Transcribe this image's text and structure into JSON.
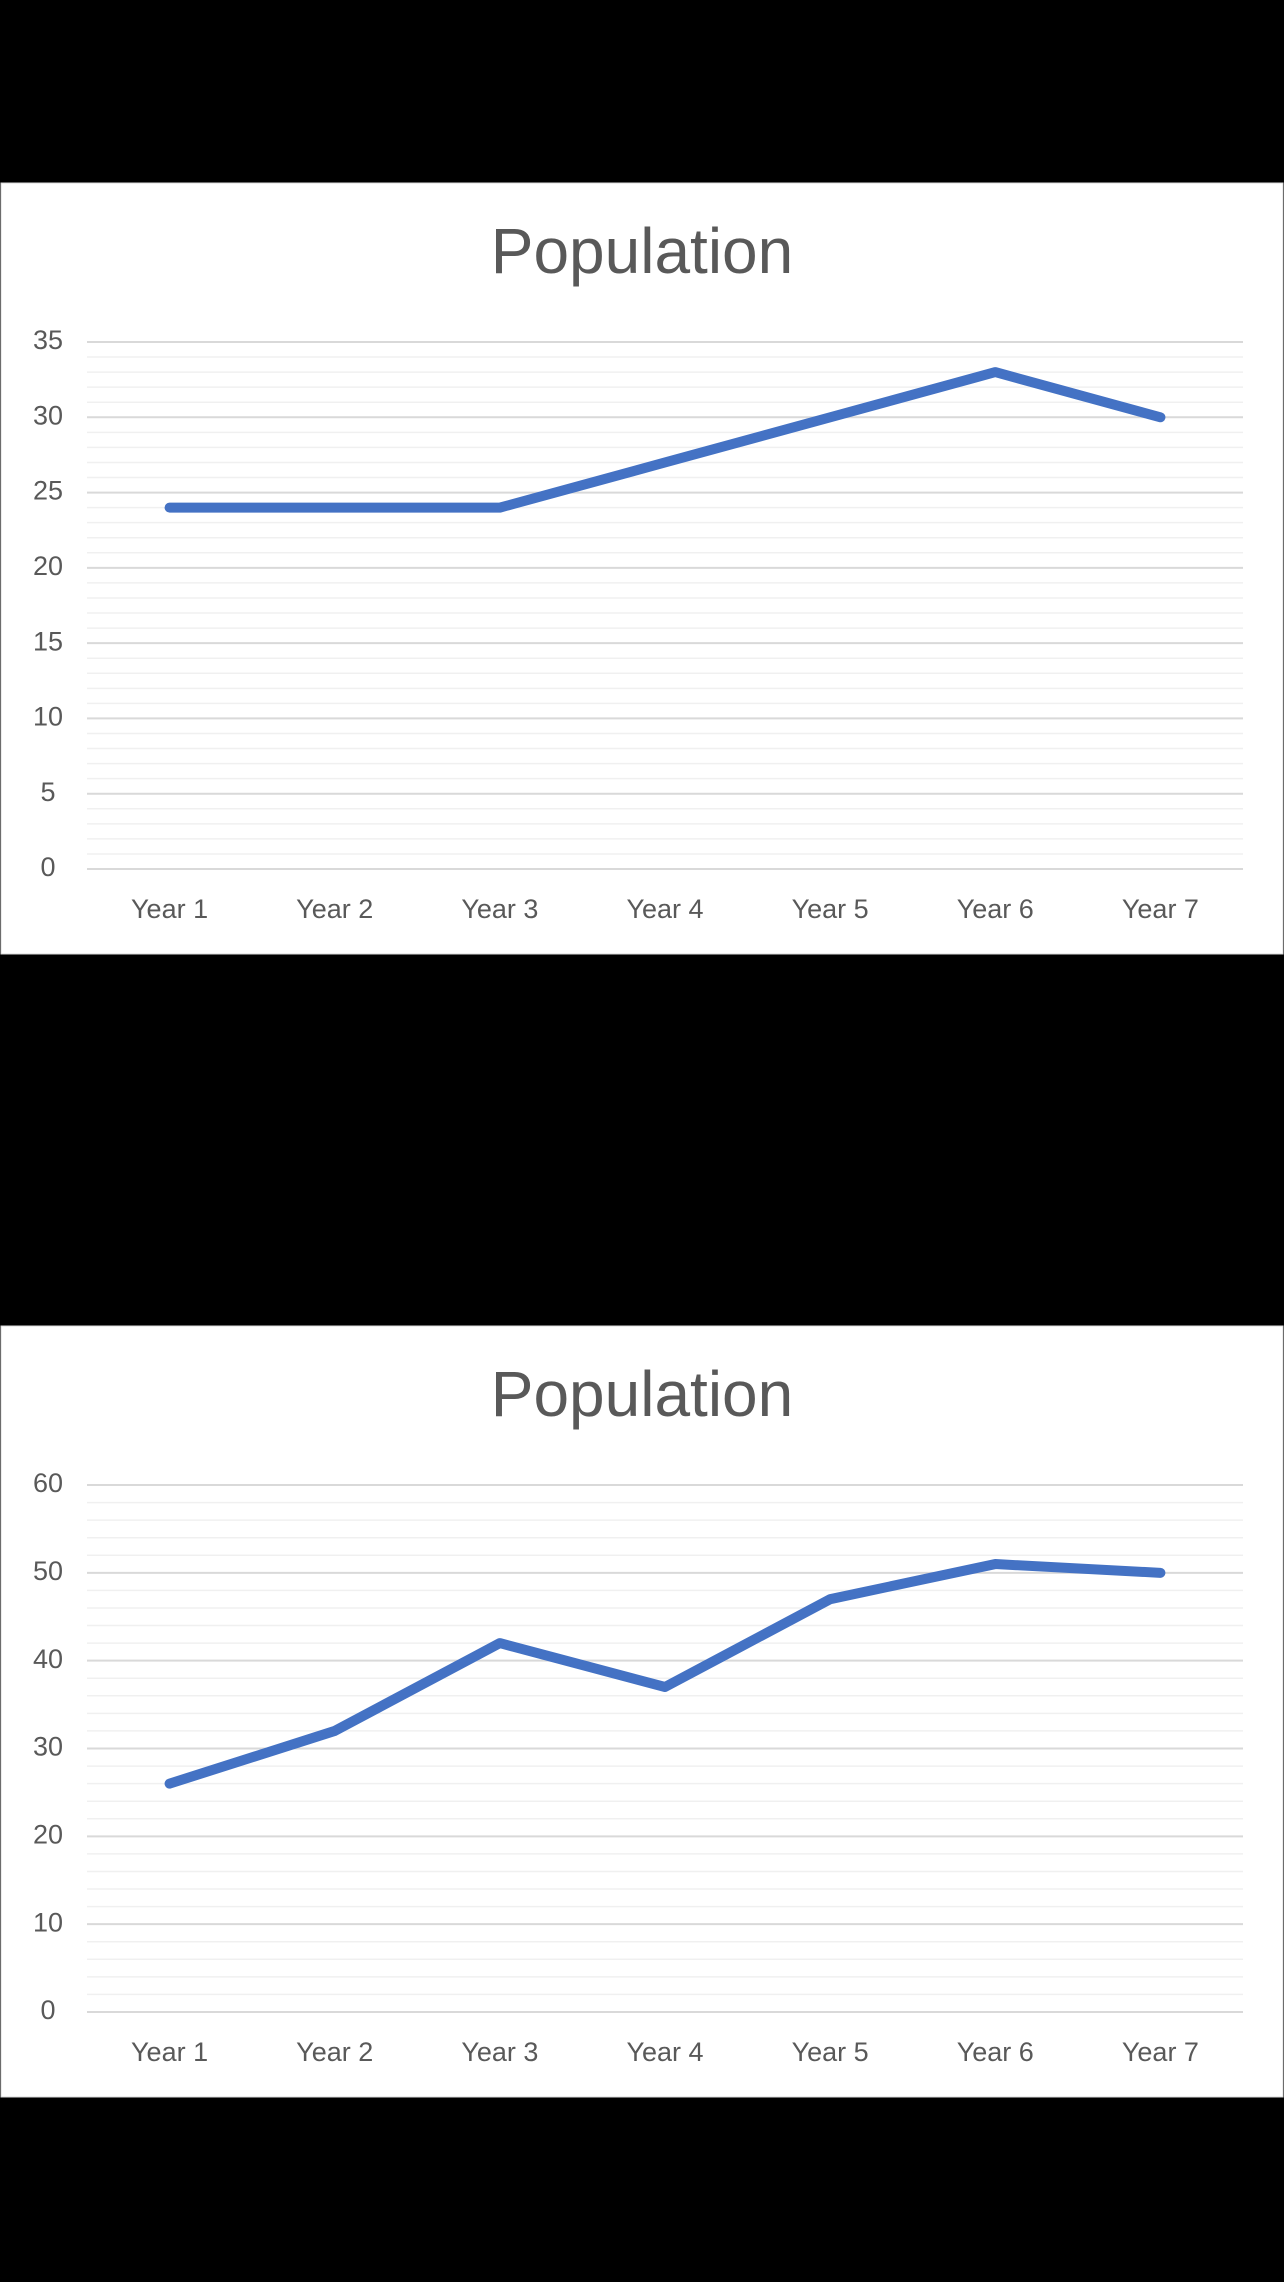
{
  "chart_data": [
    {
      "type": "line",
      "title": "Population",
      "categories": [
        "Year 1",
        "Year 2",
        "Year 3",
        "Year 4",
        "Year 5",
        "Year 6",
        "Year 7"
      ],
      "values": [
        24,
        24,
        24,
        27,
        30,
        33,
        30
      ],
      "color": "#4472c4",
      "ylim": [
        0,
        35
      ],
      "yticks": [
        0,
        5,
        10,
        15,
        20,
        25,
        30,
        35
      ],
      "grid": true,
      "minor_grid_step": 1
    },
    {
      "type": "line",
      "title": "Population",
      "categories": [
        "Year 1",
        "Year 2",
        "Year 3",
        "Year 4",
        "Year 5",
        "Year 6",
        "Year 7"
      ],
      "values": [
        26,
        32,
        42,
        37,
        47,
        51,
        50
      ],
      "color": "#4472c4",
      "ylim": [
        0,
        60
      ],
      "yticks": [
        0,
        10,
        20,
        30,
        40,
        50,
        60
      ],
      "grid": true,
      "minor_grid_step": 2
    }
  ]
}
